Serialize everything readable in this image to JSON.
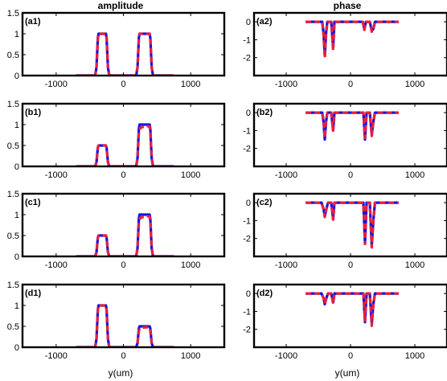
{
  "column_titles": [
    "amplitude",
    "phase"
  ],
  "xlabel": "y(um)",
  "colors": {
    "series_a": "#1414e6",
    "series_b": "#e8203a",
    "axes": "#000000"
  },
  "chart_data": [
    {
      "id": "a1",
      "type": "line",
      "label": "(a1)",
      "column": "amplitude",
      "xlim": [
        -1500,
        1500
      ],
      "ylim": [
        0,
        1.5
      ],
      "xticks": [
        -1000,
        0,
        1000
      ],
      "yticks": [
        0,
        0.5,
        1,
        1.5
      ],
      "xtick_labels": [
        "-1000",
        "0",
        "1000"
      ],
      "ytick_labels": [
        "0",
        "0.5",
        "1",
        "1.5"
      ],
      "series": [
        {
          "x": [
            -700,
            -420,
            -400,
            -380,
            -370,
            -260,
            -250,
            -230,
            -210,
            190,
            210,
            230,
            240,
            390,
            400,
            420,
            440,
            750
          ],
          "y": [
            0,
            0,
            0.2,
            0.9,
            1.0,
            1.0,
            0.9,
            0.2,
            0,
            0,
            0.2,
            0.9,
            1.0,
            1.0,
            0.9,
            0.2,
            0,
            0
          ]
        },
        {
          "x": [
            -700,
            -420,
            -400,
            -380,
            -370,
            -260,
            -250,
            -230,
            -210,
            190,
            210,
            230,
            240,
            390,
            400,
            420,
            440,
            750
          ],
          "y": [
            0,
            0,
            0.2,
            0.9,
            1.0,
            1.0,
            0.9,
            0.2,
            0,
            0,
            0.2,
            0.9,
            1.0,
            1.0,
            0.9,
            0.2,
            0,
            0
          ]
        }
      ]
    },
    {
      "id": "a2",
      "type": "line",
      "label": "(a2)",
      "column": "phase",
      "xlim": [
        -1500,
        1500
      ],
      "ylim": [
        -3,
        0.5
      ],
      "xticks": [
        -1000,
        0,
        1000
      ],
      "yticks": [
        -2,
        -1,
        0
      ],
      "xtick_labels": [
        "-1000",
        "0",
        "1000"
      ],
      "ytick_labels": [
        "-2",
        "-1",
        "0"
      ],
      "series": [
        {
          "x": [
            -700,
            -440,
            -420,
            -400,
            -380,
            -360,
            -330,
            -300,
            -270,
            -250,
            -210,
            150,
            190,
            215,
            240,
            270,
            300,
            330,
            355,
            380,
            410,
            750
          ],
          "y": [
            0,
            0,
            -0.6,
            -1.9,
            -0.6,
            0,
            0,
            0,
            -1.4,
            0,
            0,
            0,
            0,
            -0.4,
            0,
            0,
            0,
            -0.5,
            -0.4,
            0,
            0,
            0
          ]
        },
        {
          "x": [
            -700,
            -440,
            -420,
            -400,
            -380,
            -360,
            -330,
            -300,
            -270,
            -250,
            -210,
            150,
            190,
            215,
            240,
            270,
            300,
            330,
            355,
            380,
            410,
            750
          ],
          "y": [
            0,
            0,
            -0.7,
            -2.0,
            -0.7,
            0,
            0,
            0,
            -1.6,
            0,
            0,
            0,
            0,
            -0.45,
            0,
            0,
            0,
            -0.55,
            -0.4,
            0,
            0,
            0
          ]
        }
      ]
    },
    {
      "id": "b1",
      "type": "line",
      "label": "(b1)",
      "column": "amplitude",
      "xlim": [
        -1500,
        1500
      ],
      "ylim": [
        0,
        1.5
      ],
      "xticks": [
        -1000,
        0,
        1000
      ],
      "yticks": [
        0,
        0.5,
        1,
        1.5
      ],
      "xtick_labels": [
        "-1000",
        "0",
        "1000"
      ],
      "ytick_labels": [
        "0",
        "0.5",
        "1",
        "1.5"
      ],
      "series": [
        {
          "x": [
            -700,
            -420,
            -400,
            -380,
            -370,
            -260,
            -250,
            -230,
            -210,
            190,
            210,
            230,
            240,
            390,
            400,
            420,
            440,
            750
          ],
          "y": [
            0,
            0,
            0.1,
            0.45,
            0.5,
            0.5,
            0.45,
            0.1,
            0,
            0,
            0.2,
            0.9,
            1.0,
            1.0,
            0.9,
            0.2,
            0,
            0
          ]
        },
        {
          "x": [
            -700,
            -420,
            -400,
            -380,
            -370,
            -260,
            -250,
            -230,
            -210,
            190,
            210,
            230,
            250,
            300,
            340,
            390,
            400,
            420,
            440,
            750
          ],
          "y": [
            0,
            0,
            0.1,
            0.45,
            0.5,
            0.5,
            0.45,
            0.1,
            0,
            0,
            0.2,
            0.8,
            0.92,
            0.95,
            0.97,
            0.95,
            0.85,
            0.2,
            0,
            0
          ]
        }
      ]
    },
    {
      "id": "b2",
      "type": "line",
      "label": "(b2)",
      "column": "phase",
      "xlim": [
        -1500,
        1500
      ],
      "ylim": [
        -3,
        0.5
      ],
      "xticks": [
        -1000,
        0,
        1000
      ],
      "yticks": [
        -2,
        -1,
        0
      ],
      "xtick_labels": [
        "-1000",
        "0",
        "1000"
      ],
      "ytick_labels": [
        "-2",
        "-1",
        "0"
      ],
      "series": [
        {
          "x": [
            -700,
            -440,
            -420,
            -400,
            -380,
            -360,
            -330,
            -300,
            -270,
            -250,
            -210,
            170,
            200,
            225,
            250,
            270,
            300,
            330,
            355,
            380,
            410,
            750
          ],
          "y": [
            0,
            0,
            -0.5,
            -1.5,
            -0.5,
            0,
            0,
            0,
            -1.0,
            0,
            0,
            0,
            0,
            -1.5,
            0,
            0,
            0,
            -1.2,
            -0.5,
            0,
            0,
            0
          ]
        },
        {
          "x": [
            -700,
            -440,
            -420,
            -400,
            -380,
            -360,
            -330,
            -300,
            -270,
            -250,
            -210,
            170,
            200,
            225,
            250,
            270,
            300,
            330,
            355,
            380,
            410,
            750
          ],
          "y": [
            0,
            0,
            -0.45,
            -1.4,
            -0.45,
            0,
            0,
            0,
            -1.0,
            0,
            0,
            0,
            0,
            -1.4,
            0,
            0,
            0,
            -1.3,
            -0.5,
            0,
            0,
            0
          ]
        }
      ]
    },
    {
      "id": "c1",
      "type": "line",
      "label": "(c1)",
      "column": "amplitude",
      "xlim": [
        -1500,
        1500
      ],
      "ylim": [
        0,
        1.5
      ],
      "xticks": [
        -1000,
        0,
        1000
      ],
      "yticks": [
        0,
        0.5,
        1,
        1.5
      ],
      "xtick_labels": [
        "-1000",
        "0",
        "1000"
      ],
      "ytick_labels": [
        "0",
        "0.5",
        "1",
        "1.5"
      ],
      "series": [
        {
          "x": [
            -700,
            -420,
            -400,
            -380,
            -370,
            -260,
            -250,
            -230,
            -210,
            190,
            210,
            230,
            240,
            390,
            400,
            420,
            440,
            750
          ],
          "y": [
            0,
            0,
            0.1,
            0.45,
            0.5,
            0.5,
            0.45,
            0.1,
            0,
            0,
            0.2,
            0.9,
            1.0,
            1.0,
            0.9,
            0.2,
            0,
            0
          ]
        },
        {
          "x": [
            -700,
            -420,
            -400,
            -380,
            -370,
            -260,
            -250,
            -230,
            -210,
            190,
            210,
            230,
            250,
            300,
            340,
            390,
            400,
            420,
            440,
            750
          ],
          "y": [
            0,
            0,
            0.1,
            0.45,
            0.5,
            0.5,
            0.45,
            0.1,
            0,
            0,
            0.2,
            0.8,
            0.92,
            0.95,
            0.97,
            0.95,
            0.85,
            0.2,
            0,
            0
          ]
        }
      ]
    },
    {
      "id": "c2",
      "type": "line",
      "label": "(c2)",
      "column": "phase",
      "xlim": [
        -1500,
        1500
      ],
      "ylim": [
        -3,
        0.5
      ],
      "xticks": [
        -1000,
        0,
        1000
      ],
      "yticks": [
        -2,
        -1,
        0
      ],
      "xtick_labels": [
        "-1000",
        "0",
        "1000"
      ],
      "ytick_labels": [
        "-2",
        "-1",
        "0"
      ],
      "series": [
        {
          "x": [
            -700,
            -450,
            -420,
            -400,
            -375,
            -350,
            -330,
            -300,
            -270,
            -250,
            -210,
            170,
            200,
            225,
            250,
            270,
            300,
            330,
            355,
            380,
            410,
            750
          ],
          "y": [
            0,
            0,
            -0.35,
            -0.75,
            -0.35,
            0,
            0,
            0,
            -0.9,
            0,
            0,
            0,
            0,
            -2.3,
            0,
            0,
            0,
            -2.4,
            -1.0,
            0,
            0,
            0
          ]
        },
        {
          "x": [
            -700,
            -450,
            -420,
            -400,
            -375,
            -350,
            -330,
            -300,
            -270,
            -250,
            -210,
            170,
            200,
            225,
            250,
            270,
            300,
            330,
            355,
            380,
            410,
            750
          ],
          "y": [
            0,
            0,
            -0.35,
            -0.8,
            -0.35,
            0,
            0,
            0,
            -0.95,
            0,
            0,
            0,
            0,
            -2.3,
            0,
            0,
            0,
            -2.5,
            -1.0,
            0,
            0,
            0
          ]
        }
      ]
    },
    {
      "id": "d1",
      "type": "line",
      "label": "(d1)",
      "column": "amplitude",
      "xlim": [
        -1500,
        1500
      ],
      "ylim": [
        0,
        1.5
      ],
      "xticks": [
        -1000,
        0,
        1000
      ],
      "yticks": [
        0,
        0.5,
        1,
        1.5
      ],
      "xtick_labels": [
        "-1000",
        "0",
        "1000"
      ],
      "ytick_labels": [
        "0",
        "0.5",
        "1",
        "1.5"
      ],
      "series": [
        {
          "x": [
            -700,
            -420,
            -400,
            -380,
            -370,
            -260,
            -250,
            -230,
            -210,
            190,
            210,
            230,
            240,
            390,
            400,
            420,
            440,
            750
          ],
          "y": [
            0,
            0,
            0.2,
            0.9,
            1.0,
            1.0,
            0.9,
            0.2,
            0,
            0,
            0.1,
            0.45,
            0.5,
            0.5,
            0.45,
            0.1,
            0,
            0
          ]
        },
        {
          "x": [
            -700,
            -420,
            -400,
            -380,
            -370,
            -260,
            -250,
            -230,
            -210,
            190,
            210,
            230,
            250,
            300,
            340,
            390,
            400,
            420,
            440,
            750
          ],
          "y": [
            0,
            0,
            0.2,
            0.9,
            1.0,
            1.0,
            0.9,
            0.2,
            0,
            0,
            0.1,
            0.4,
            0.45,
            0.47,
            0.48,
            0.47,
            0.4,
            0.1,
            0,
            0
          ]
        }
      ]
    },
    {
      "id": "d2",
      "type": "line",
      "label": "(d2)",
      "column": "phase",
      "xlim": [
        -1500,
        1500
      ],
      "ylim": [
        -3,
        0.5
      ],
      "xticks": [
        -1000,
        0,
        1000
      ],
      "yticks": [
        -2,
        -1,
        0
      ],
      "xtick_labels": [
        "-1000",
        "0",
        "1000"
      ],
      "ytick_labels": [
        "-2",
        "-1",
        "0"
      ],
      "series": [
        {
          "x": [
            -700,
            -450,
            -420,
            -400,
            -375,
            -350,
            -330,
            -300,
            -270,
            -250,
            -210,
            170,
            200,
            225,
            250,
            270,
            300,
            330,
            355,
            380,
            410,
            750
          ],
          "y": [
            0,
            0,
            -0.25,
            -0.6,
            -0.25,
            0,
            0,
            0,
            -0.5,
            0,
            0,
            0,
            0,
            -1.6,
            0,
            0,
            0,
            -1.7,
            -0.6,
            0,
            0,
            0
          ]
        },
        {
          "x": [
            -700,
            -450,
            -420,
            -400,
            -375,
            -350,
            -330,
            -300,
            -270,
            -250,
            -210,
            170,
            200,
            225,
            250,
            270,
            300,
            330,
            355,
            380,
            410,
            750
          ],
          "y": [
            0,
            0,
            -0.25,
            -0.55,
            -0.25,
            0,
            0,
            0,
            -0.55,
            0,
            0,
            0,
            0,
            -1.5,
            0,
            0,
            0,
            -1.8,
            -0.6,
            0,
            0,
            0
          ]
        }
      ]
    }
  ]
}
